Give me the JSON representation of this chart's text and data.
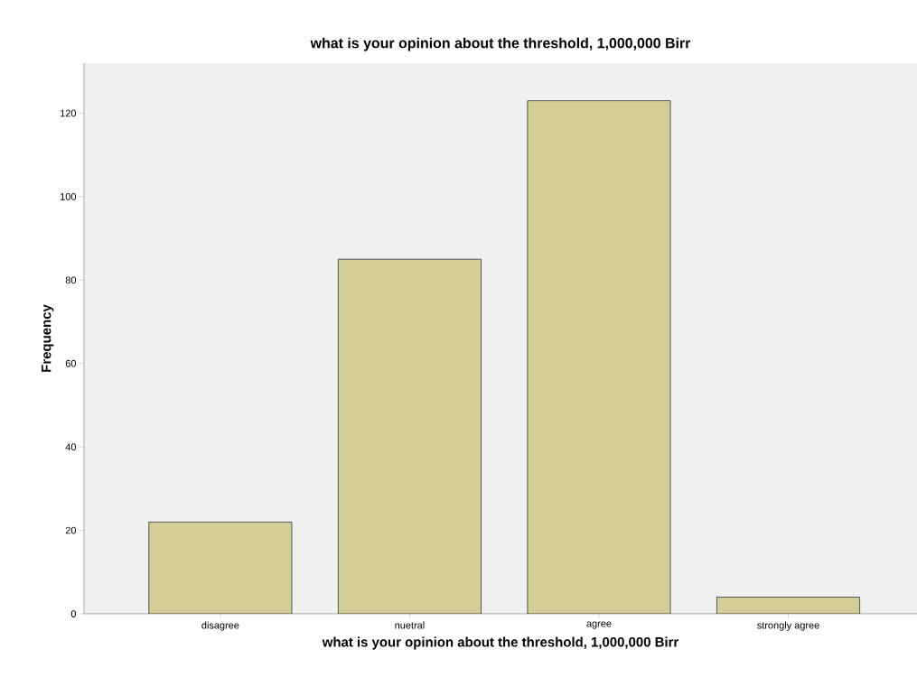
{
  "chart_data": {
    "type": "bar",
    "title": "what is your opinion about the threshold, 1,000,000 Birr",
    "xlabel": "what is your opinion about the threshold, 1,000,000 Birr",
    "ylabel": "Frequency",
    "categories": [
      "disagree",
      "nuetral",
      "agree",
      "strongly agree"
    ],
    "values": [
      22,
      85,
      123,
      4
    ],
    "color": "#d3ce97",
    "ylim": [
      0,
      132
    ],
    "yticks": [
      0,
      20,
      40,
      60,
      80,
      100,
      120
    ],
    "grid": false
  }
}
